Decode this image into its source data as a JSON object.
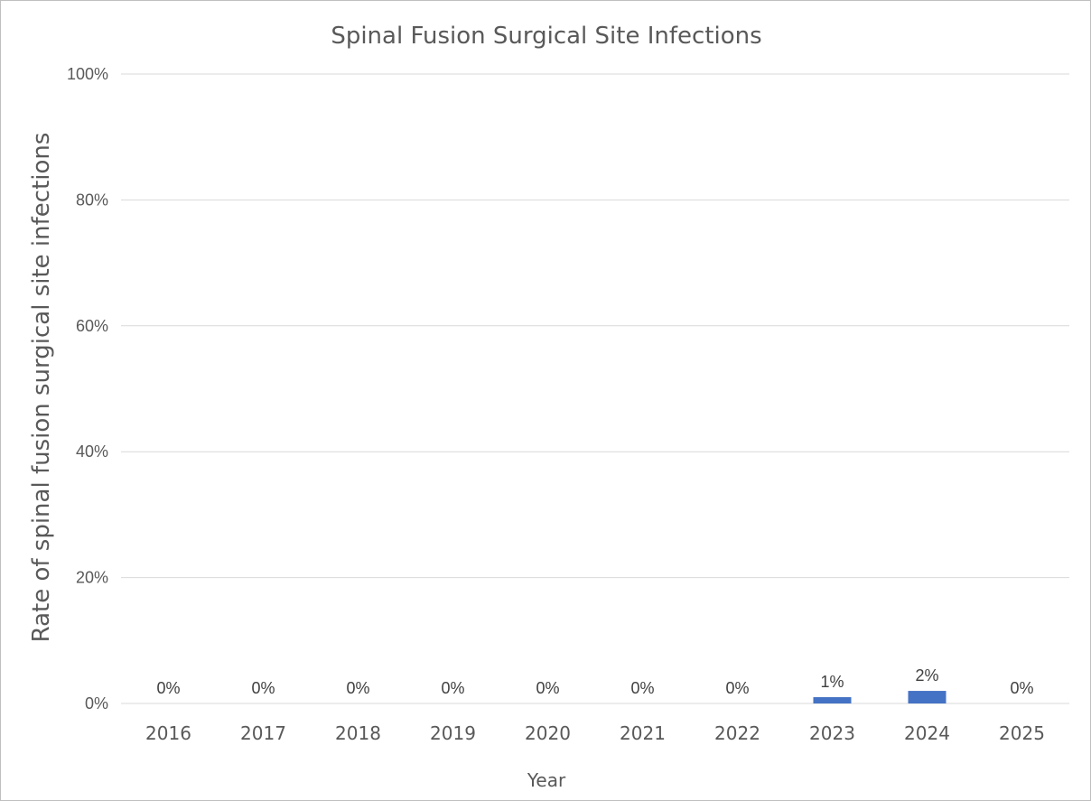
{
  "chart_data": {
    "type": "bar",
    "title": "Spinal Fusion Surgical Site Infections",
    "xlabel": "Year",
    "ylabel": "Rate of spinal fusion surgical site infections",
    "categories": [
      "2016",
      "2017",
      "2018",
      "2019",
      "2020",
      "2021",
      "2022",
      "2023",
      "2024",
      "2025"
    ],
    "values": [
      0,
      0,
      0,
      0,
      0,
      0,
      0,
      1,
      2,
      0
    ],
    "data_labels": [
      "0%",
      "0%",
      "0%",
      "0%",
      "0%",
      "0%",
      "0%",
      "1%",
      "2%",
      "0%"
    ],
    "ylim": [
      0,
      100
    ],
    "yticks": [
      0,
      20,
      40,
      60,
      80,
      100
    ],
    "ytick_labels": [
      "0%",
      "20%",
      "40%",
      "60%",
      "80%",
      "100%"
    ],
    "grid": true,
    "legend": "none",
    "colors": {
      "bar": "#4472C4",
      "gridline": "#d9d9d9",
      "text": "#595959",
      "border": "#bfbfbf"
    }
  }
}
